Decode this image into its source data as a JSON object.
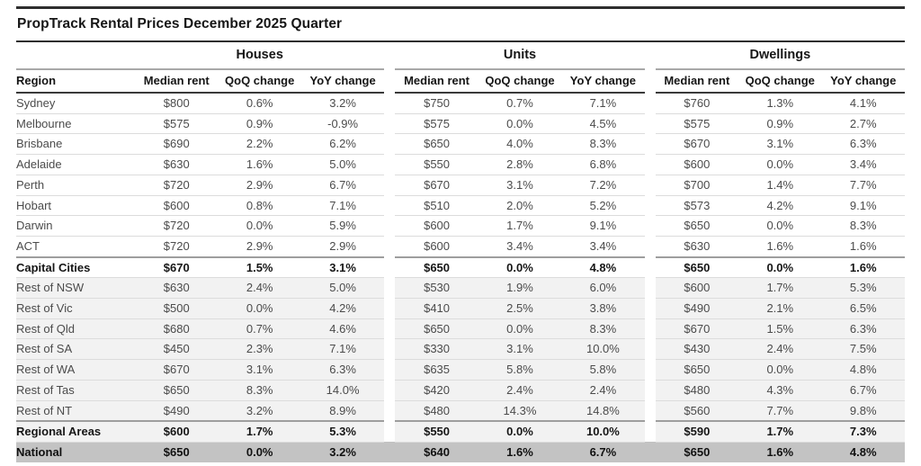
{
  "colors": {
    "shaded_row_bg": "#f2f2f2",
    "national_row_bg": "#c3c3c3",
    "rule_dark": "#2e2e2e",
    "group_underline": "#a8a8a8",
    "row_line": "#dcdcdc"
  },
  "chart_data": {
    "type": "table",
    "title": "PropTrack Rental Prices December 2025 Quarter",
    "column_groups": [
      "Houses",
      "Units",
      "Dwellings"
    ],
    "columns": [
      "Region",
      "Median rent",
      "QoQ change",
      "YoY change"
    ],
    "rows": [
      {
        "region": "Sydney",
        "style": "",
        "houses": [
          "$800",
          "0.6%",
          "3.2%"
        ],
        "units": [
          "$750",
          "0.7%",
          "7.1%"
        ],
        "dwellings": [
          "$760",
          "1.3%",
          "4.1%"
        ]
      },
      {
        "region": "Melbourne",
        "style": "",
        "houses": [
          "$575",
          "0.9%",
          "-0.9%"
        ],
        "units": [
          "$575",
          "0.0%",
          "4.5%"
        ],
        "dwellings": [
          "$575",
          "0.9%",
          "2.7%"
        ]
      },
      {
        "region": "Brisbane",
        "style": "",
        "houses": [
          "$690",
          "2.2%",
          "6.2%"
        ],
        "units": [
          "$650",
          "4.0%",
          "8.3%"
        ],
        "dwellings": [
          "$670",
          "3.1%",
          "6.3%"
        ]
      },
      {
        "region": "Adelaide",
        "style": "",
        "houses": [
          "$630",
          "1.6%",
          "5.0%"
        ],
        "units": [
          "$550",
          "2.8%",
          "6.8%"
        ],
        "dwellings": [
          "$600",
          "0.0%",
          "3.4%"
        ]
      },
      {
        "region": "Perth",
        "style": "",
        "houses": [
          "$720",
          "2.9%",
          "6.7%"
        ],
        "units": [
          "$670",
          "3.1%",
          "7.2%"
        ],
        "dwellings": [
          "$700",
          "1.4%",
          "7.7%"
        ]
      },
      {
        "region": "Hobart",
        "style": "",
        "houses": [
          "$600",
          "0.8%",
          "7.1%"
        ],
        "units": [
          "$510",
          "2.0%",
          "5.2%"
        ],
        "dwellings": [
          "$573",
          "4.2%",
          "9.1%"
        ]
      },
      {
        "region": "Darwin",
        "style": "",
        "houses": [
          "$720",
          "0.0%",
          "5.9%"
        ],
        "units": [
          "$600",
          "1.7%",
          "9.1%"
        ],
        "dwellings": [
          "$650",
          "0.0%",
          "8.3%"
        ]
      },
      {
        "region": "ACT",
        "style": "",
        "houses": [
          "$720",
          "2.9%",
          "2.9%"
        ],
        "units": [
          "$600",
          "3.4%",
          "3.4%"
        ],
        "dwellings": [
          "$630",
          "1.6%",
          "1.6%"
        ]
      },
      {
        "region": "Capital Cities",
        "style": "summary",
        "houses": [
          "$670",
          "1.5%",
          "3.1%"
        ],
        "units": [
          "$650",
          "0.0%",
          "4.8%"
        ],
        "dwellings": [
          "$650",
          "0.0%",
          "1.6%"
        ]
      },
      {
        "region": "Rest of NSW",
        "style": "shaded",
        "houses": [
          "$630",
          "2.4%",
          "5.0%"
        ],
        "units": [
          "$530",
          "1.9%",
          "6.0%"
        ],
        "dwellings": [
          "$600",
          "1.7%",
          "5.3%"
        ]
      },
      {
        "region": "Rest of Vic",
        "style": "shaded",
        "houses": [
          "$500",
          "0.0%",
          "4.2%"
        ],
        "units": [
          "$410",
          "2.5%",
          "3.8%"
        ],
        "dwellings": [
          "$490",
          "2.1%",
          "6.5%"
        ]
      },
      {
        "region": "Rest of Qld",
        "style": "shaded",
        "houses": [
          "$680",
          "0.7%",
          "4.6%"
        ],
        "units": [
          "$650",
          "0.0%",
          "8.3%"
        ],
        "dwellings": [
          "$670",
          "1.5%",
          "6.3%"
        ]
      },
      {
        "region": "Rest of SA",
        "style": "shaded",
        "houses": [
          "$450",
          "2.3%",
          "7.1%"
        ],
        "units": [
          "$330",
          "3.1%",
          "10.0%"
        ],
        "dwellings": [
          "$430",
          "2.4%",
          "7.5%"
        ]
      },
      {
        "region": "Rest of WA",
        "style": "shaded",
        "houses": [
          "$670",
          "3.1%",
          "6.3%"
        ],
        "units": [
          "$635",
          "5.8%",
          "5.8%"
        ],
        "dwellings": [
          "$650",
          "0.0%",
          "4.8%"
        ]
      },
      {
        "region": "Rest of Tas",
        "style": "shaded",
        "houses": [
          "$650",
          "8.3%",
          "14.0%"
        ],
        "units": [
          "$420",
          "2.4%",
          "2.4%"
        ],
        "dwellings": [
          "$480",
          "4.3%",
          "6.7%"
        ]
      },
      {
        "region": "Rest of NT",
        "style": "shaded",
        "houses": [
          "$490",
          "3.2%",
          "8.9%"
        ],
        "units": [
          "$480",
          "14.3%",
          "14.8%"
        ],
        "dwellings": [
          "$560",
          "7.7%",
          "9.8%"
        ]
      },
      {
        "region": "Regional Areas",
        "style": "summary shaded",
        "houses": [
          "$600",
          "1.7%",
          "5.3%"
        ],
        "units": [
          "$550",
          "0.0%",
          "10.0%"
        ],
        "dwellings": [
          "$590",
          "1.7%",
          "7.3%"
        ]
      },
      {
        "region": "National",
        "style": "national",
        "houses": [
          "$650",
          "0.0%",
          "3.2%"
        ],
        "units": [
          "$640",
          "1.6%",
          "6.7%"
        ],
        "dwellings": [
          "$650",
          "1.6%",
          "4.8%"
        ]
      }
    ]
  }
}
